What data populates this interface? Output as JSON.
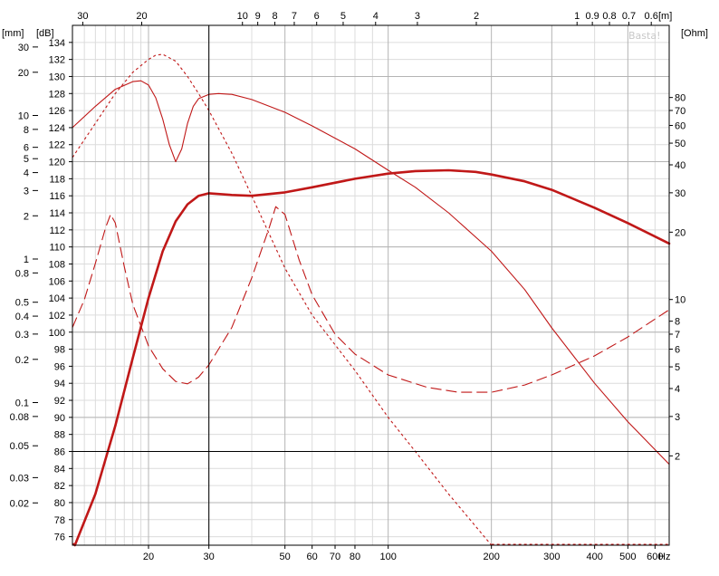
{
  "chart_data": {
    "type": "line",
    "title": "",
    "watermark": "Basta!",
    "x_axis": {
      "scale": "log",
      "range": [
        12,
        660
      ],
      "unit": "Hz",
      "ticks": [
        "20",
        "30",
        "50",
        "60",
        "70",
        "80",
        "100",
        "200",
        "300",
        "400",
        "500",
        "600"
      ],
      "tick_values": [
        20,
        30,
        50,
        60,
        70,
        80,
        100,
        200,
        300,
        400,
        500,
        600
      ],
      "minor_grid": [
        13,
        14,
        15,
        16,
        17,
        18,
        19,
        40,
        90
      ]
    },
    "wavelength_axis": {
      "position": "top",
      "unit": "[m]",
      "ticks": [
        "30",
        "20",
        "10",
        "9",
        "8",
        "7",
        "6",
        "5",
        "4",
        "3",
        "2",
        "1",
        "0.9",
        "0.8",
        "0.7",
        "0.6"
      ],
      "tick_values": [
        30,
        20,
        10,
        9,
        8,
        7,
        6,
        5,
        4,
        3,
        2,
        1,
        0.9,
        0.8,
        0.7,
        0.6
      ]
    },
    "spl_axis": {
      "unit": "[dB]",
      "range": [
        75,
        136
      ],
      "ticks": [
        "76",
        "78",
        "80",
        "82",
        "84",
        "86",
        "88",
        "90",
        "92",
        "94",
        "96",
        "98",
        "100",
        "102",
        "104",
        "106",
        "108",
        "110",
        "112",
        "114",
        "116",
        "118",
        "120",
        "122",
        "124",
        "126",
        "128",
        "130",
        "132",
        "134"
      ],
      "tick_values": [
        76,
        78,
        80,
        82,
        84,
        86,
        88,
        90,
        92,
        94,
        96,
        98,
        100,
        102,
        104,
        106,
        108,
        110,
        112,
        114,
        116,
        118,
        120,
        122,
        124,
        126,
        128,
        130,
        132,
        134
      ]
    },
    "excursion_axis": {
      "unit": "[mm]",
      "scale": "log",
      "ticks": [
        "30",
        "20",
        "10",
        "8",
        "6",
        "5",
        "4",
        "3",
        "2",
        "1",
        "0.8",
        "0.5",
        "0.4",
        "0.3",
        "0.2",
        "0.1",
        "0.08",
        "0.05",
        "0.03",
        "0.02"
      ],
      "tick_values": [
        30,
        20,
        10,
        8,
        6,
        5,
        4,
        3,
        2,
        1,
        0.8,
        0.5,
        0.4,
        0.3,
        0.2,
        0.1,
        0.08,
        0.05,
        0.03,
        0.02
      ]
    },
    "impedance_axis": {
      "unit": "[Ohm]",
      "scale": "log",
      "ticks": [
        "80",
        "70",
        "60",
        "50",
        "40",
        "30",
        "20",
        "10",
        "8",
        "7",
        "6",
        "5",
        "4",
        "3",
        "2"
      ],
      "tick_values": [
        80,
        70,
        60,
        50,
        40,
        30,
        20,
        10,
        8,
        7,
        6,
        5,
        4,
        3,
        2
      ]
    },
    "reference_lines": {
      "x": 30,
      "y": 86
    },
    "grid": true,
    "series": [
      {
        "role": "spl",
        "style": "thick",
        "color": "#c01818",
        "x": [
          12.2,
          14,
          16,
          18,
          20,
          22,
          24,
          26,
          28,
          30,
          35,
          40,
          50,
          60,
          80,
          100,
          120,
          150,
          180,
          200,
          250,
          300,
          400,
          500,
          660
        ],
        "y": [
          75,
          81,
          89,
          97,
          104,
          109.5,
          113,
          115,
          116,
          116.3,
          116.1,
          116,
          116.4,
          117,
          118,
          118.6,
          118.9,
          119,
          118.8,
          118.5,
          117.7,
          116.7,
          114.6,
          112.8,
          110.4
        ]
      },
      {
        "role": "max-spl",
        "style": "thin",
        "color": "#c01818",
        "x": [
          12,
          14,
          16,
          18,
          19,
          20,
          21,
          22,
          23,
          24,
          25,
          26,
          27,
          28,
          30,
          32,
          35,
          40,
          50,
          60,
          80,
          100,
          120,
          150,
          200,
          250,
          300,
          400,
          500,
          660
        ],
        "y": [
          124,
          126.5,
          128.5,
          129.4,
          129.5,
          129,
          127.5,
          125,
          122,
          120,
          121.5,
          124.5,
          126.5,
          127.4,
          127.9,
          128,
          127.9,
          127.3,
          125.8,
          124.2,
          121.5,
          119,
          117,
          114,
          109.5,
          105,
          100.5,
          94,
          89.5,
          84.5
        ]
      },
      {
        "role": "spl-without-excursion-limit",
        "style": "dotted",
        "color": "#c01818",
        "x": [
          12,
          14,
          16,
          18,
          20,
          21,
          22,
          24,
          26,
          28,
          30,
          35,
          40,
          50,
          60,
          80,
          100,
          120,
          150,
          200
        ],
        "y": [
          120.5,
          124.5,
          128,
          130.5,
          132,
          132.5,
          132.6,
          131.8,
          130,
          128,
          126,
          121,
          116,
          107.5,
          102,
          95.5,
          90,
          86,
          81,
          75
        ]
      },
      {
        "role": "impedance-ohm",
        "style": "dashed",
        "color": "#c01818",
        "x": [
          12,
          13,
          14,
          15,
          15.5,
          16,
          17,
          18,
          20,
          22,
          24,
          26,
          28,
          30,
          35,
          40,
          45,
          47,
          50,
          55,
          60,
          70,
          80,
          100,
          130,
          160,
          200,
          250,
          300,
          400,
          500,
          660
        ],
        "y": [
          7.5,
          10,
          14.5,
          21,
          24,
          22,
          14,
          9.5,
          6.2,
          4.9,
          4.3,
          4.2,
          4.5,
          5.1,
          7.5,
          12.5,
          21,
          26,
          24,
          15,
          10.5,
          7,
          5.7,
          4.6,
          4.05,
          3.85,
          3.85,
          4.15,
          4.6,
          5.6,
          6.8,
          9
        ]
      }
    ]
  }
}
